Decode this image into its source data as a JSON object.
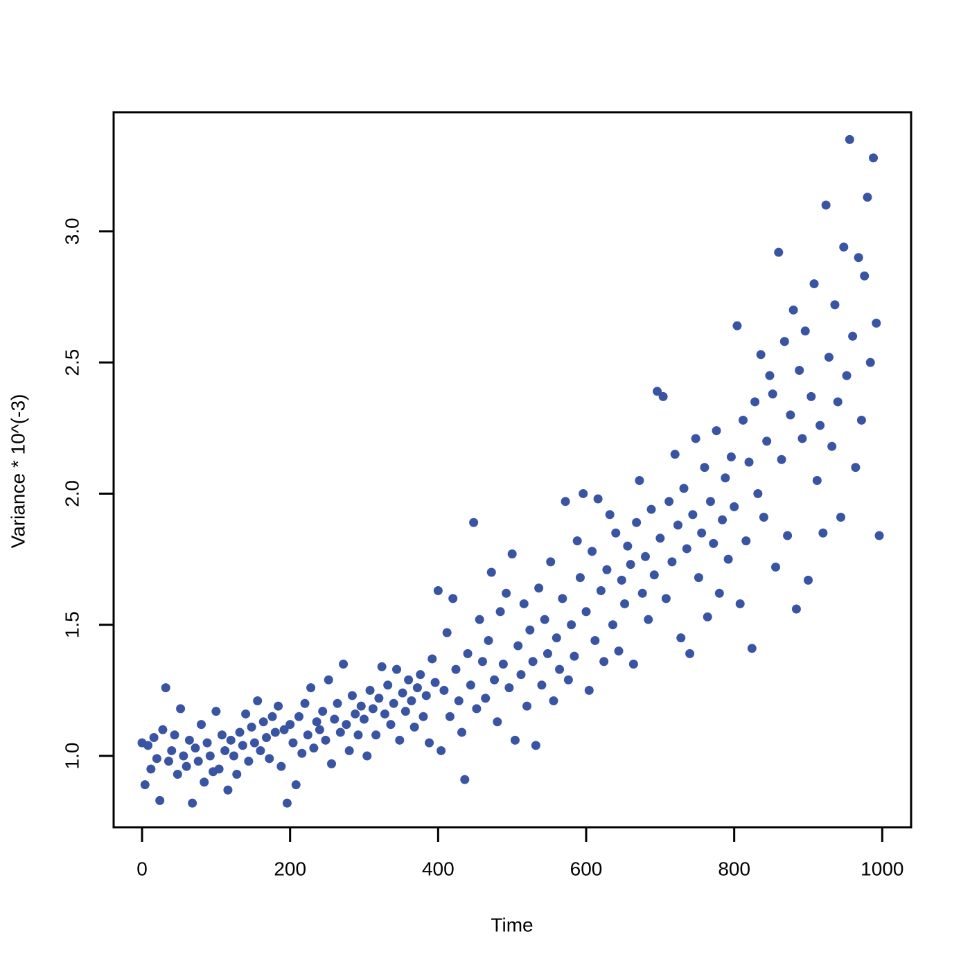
{
  "chart_data": {
    "type": "scatter",
    "x_label": "Time",
    "y_label": "Variance * 10^(-3)",
    "color": "#3a54a4",
    "xlim": [
      -38.4,
      1039
    ],
    "ylim": [
      0.728,
      3.454
    ],
    "xticks": [
      0,
      200,
      400,
      600,
      800,
      1000
    ],
    "yticks": [
      {
        "value": 1,
        "label": "1.0"
      },
      1.5,
      {
        "value": 2,
        "label": "2.0"
      },
      2.5,
      {
        "value": 3,
        "label": "3.0"
      }
    ],
    "x": [
      0,
      4,
      8,
      12,
      16,
      20,
      24,
      28,
      32,
      36,
      40,
      44,
      48,
      52,
      56,
      60,
      64,
      68,
      72,
      76,
      80,
      84,
      88,
      92,
      96,
      100,
      104,
      108,
      112,
      116,
      120,
      124,
      128,
      132,
      136,
      140,
      144,
      148,
      152,
      156,
      160,
      164,
      168,
      172,
      176,
      180,
      184,
      188,
      192,
      196,
      200,
      204,
      208,
      212,
      216,
      220,
      224,
      228,
      232,
      236,
      240,
      244,
      248,
      252,
      256,
      260,
      264,
      268,
      272,
      276,
      280,
      284,
      288,
      292,
      296,
      300,
      304,
      308,
      312,
      316,
      320,
      324,
      328,
      332,
      336,
      340,
      344,
      348,
      352,
      356,
      360,
      364,
      368,
      372,
      376,
      380,
      384,
      388,
      392,
      396,
      400,
      404,
      408,
      412,
      416,
      420,
      424,
      428,
      432,
      436,
      440,
      444,
      448,
      452,
      456,
      460,
      464,
      468,
      472,
      476,
      480,
      484,
      488,
      492,
      496,
      500,
      504,
      508,
      512,
      516,
      520,
      524,
      528,
      532,
      536,
      540,
      544,
      548,
      552,
      556,
      560,
      564,
      568,
      572,
      576,
      580,
      584,
      588,
      592,
      596,
      600,
      604,
      608,
      612,
      616,
      620,
      624,
      628,
      632,
      636,
      640,
      644,
      648,
      652,
      656,
      660,
      664,
      668,
      672,
      676,
      680,
      684,
      688,
      692,
      696,
      700,
      704,
      708,
      712,
      716,
      720,
      724,
      728,
      732,
      736,
      740,
      744,
      748,
      752,
      756,
      760,
      764,
      768,
      772,
      776,
      780,
      784,
      788,
      792,
      796,
      800,
      804,
      808,
      812,
      816,
      820,
      824,
      828,
      832,
      836,
      840,
      844,
      848,
      852,
      856,
      860,
      864,
      868,
      872,
      876,
      880,
      884,
      888,
      892,
      896,
      900,
      904,
      908,
      912,
      916,
      920,
      924,
      928,
      932,
      936,
      940,
      944,
      948,
      952,
      956,
      960,
      964,
      968,
      972,
      976,
      980,
      984,
      988,
      992,
      996
    ],
    "values": [
      1.05,
      0.89,
      1.04,
      0.95,
      1.07,
      0.99,
      0.83,
      1.1,
      1.26,
      0.98,
      1.02,
      1.08,
      0.93,
      1.18,
      1.0,
      0.96,
      1.06,
      0.82,
      1.03,
      0.98,
      1.12,
      0.9,
      1.05,
      1.0,
      0.94,
      1.17,
      0.95,
      1.08,
      1.02,
      0.87,
      1.06,
      1.0,
      0.93,
      1.09,
      1.04,
      1.16,
      0.98,
      1.11,
      1.05,
      1.21,
      1.02,
      1.13,
      1.07,
      0.99,
      1.15,
      1.09,
      1.19,
      0.96,
      1.1,
      0.82,
      1.12,
      1.05,
      0.89,
      1.15,
      1.01,
      1.2,
      1.08,
      1.26,
      1.03,
      1.13,
      1.1,
      1.17,
      1.06,
      1.29,
      0.97,
      1.14,
      1.2,
      1.09,
      1.35,
      1.12,
      1.02,
      1.23,
      1.16,
      1.08,
      1.19,
      1.14,
      1.0,
      1.25,
      1.18,
      1.08,
      1.22,
      1.34,
      1.16,
      1.27,
      1.12,
      1.2,
      1.33,
      1.06,
      1.24,
      1.17,
      1.29,
      1.21,
      1.11,
      1.26,
      1.31,
      1.15,
      1.23,
      1.05,
      1.37,
      1.28,
      1.63,
      1.02,
      1.25,
      1.47,
      1.15,
      1.6,
      1.33,
      1.21,
      1.09,
      0.91,
      1.39,
      1.27,
      1.89,
      1.18,
      1.52,
      1.36,
      1.22,
      1.44,
      1.7,
      1.29,
      1.13,
      1.55,
      1.35,
      1.62,
      1.26,
      1.77,
      1.06,
      1.42,
      1.31,
      1.58,
      1.19,
      1.48,
      1.36,
      1.04,
      1.64,
      1.27,
      1.52,
      1.39,
      1.74,
      1.21,
      1.45,
      1.33,
      1.6,
      1.97,
      1.29,
      1.5,
      1.38,
      1.82,
      1.68,
      2.0,
      1.55,
      1.25,
      1.78,
      1.44,
      1.98,
      1.63,
      1.36,
      1.71,
      1.92,
      1.5,
      1.85,
      1.4,
      1.67,
      1.58,
      1.8,
      1.73,
      1.35,
      1.89,
      2.05,
      1.62,
      1.76,
      1.52,
      1.94,
      1.69,
      2.39,
      1.83,
      2.37,
      1.6,
      1.97,
      1.74,
      2.15,
      1.88,
      1.45,
      2.02,
      1.79,
      1.39,
      1.92,
      2.21,
      1.68,
      1.85,
      2.1,
      1.53,
      1.97,
      1.81,
      2.24,
      1.62,
      1.9,
      2.06,
      1.75,
      2.14,
      1.95,
      2.64,
      1.58,
      2.28,
      1.82,
      2.12,
      1.41,
      2.35,
      2.0,
      2.53,
      1.91,
      2.2,
      2.45,
      2.38,
      1.72,
      2.92,
      2.13,
      2.58,
      1.84,
      2.3,
      2.7,
      1.56,
      2.47,
      2.21,
      2.62,
      1.67,
      2.37,
      2.8,
      2.05,
      2.26,
      1.85,
      3.1,
      2.52,
      2.18,
      2.72,
      2.35,
      1.91,
      2.94,
      2.45,
      3.35,
      2.6,
      2.1,
      2.9,
      2.28,
      2.83,
      3.13,
      2.5,
      3.28,
      2.65,
      1.84
    ]
  }
}
